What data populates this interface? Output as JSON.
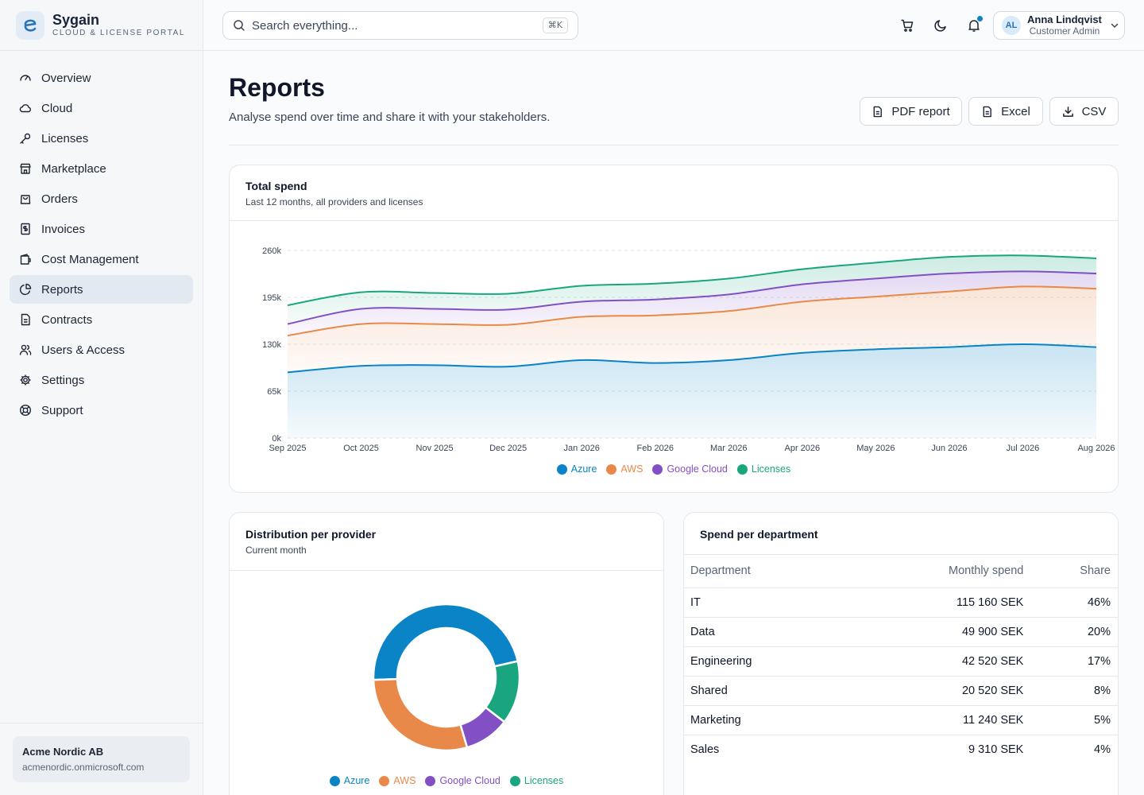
{
  "brand": {
    "name": "Sygain",
    "subtitle": "CLOUD & LICENSE PORTAL"
  },
  "sidebar": {
    "items": [
      {
        "label": "Overview",
        "icon": "gauge-icon"
      },
      {
        "label": "Cloud",
        "icon": "cloud-icon"
      },
      {
        "label": "Licenses",
        "icon": "key-icon"
      },
      {
        "label": "Marketplace",
        "icon": "store-icon"
      },
      {
        "label": "Orders",
        "icon": "shopping-bag-icon"
      },
      {
        "label": "Invoices",
        "icon": "receipt-icon"
      },
      {
        "label": "Cost Management",
        "icon": "wallet-icon"
      },
      {
        "label": "Reports",
        "icon": "pie-chart-icon",
        "active": true
      },
      {
        "label": "Contracts",
        "icon": "document-icon"
      },
      {
        "label": "Users & Access",
        "icon": "users-icon"
      },
      {
        "label": "Settings",
        "icon": "gear-icon"
      },
      {
        "label": "Support",
        "icon": "lifebuoy-icon"
      }
    ],
    "org": {
      "name": "Acme Nordic AB",
      "domain": "acmenordic.onmicrosoft.com"
    }
  },
  "topbar": {
    "search_placeholder": "Search everything...",
    "shortcut": "⌘K",
    "user": {
      "initials": "AL",
      "name": "Anna Lindqvist",
      "role": "Customer Admin"
    }
  },
  "page": {
    "title": "Reports",
    "subtitle": "Analyse spend over time and share it with your stakeholders.",
    "actions": {
      "pdf": "PDF report",
      "excel": "Excel",
      "csv": "CSV"
    }
  },
  "colors": {
    "azure": "#0a84c6",
    "aws": "#e8894a",
    "gcp": "#8250c4",
    "licenses": "#19a67e"
  },
  "total_spend": {
    "title": "Total spend",
    "subtitle": "Last 12 months, all providers and licenses"
  },
  "distribution": {
    "title": "Distribution per provider",
    "subtitle": "Current month"
  },
  "department": {
    "title": "Spend per department",
    "headers": {
      "department": "Department",
      "monthly": "Monthly spend",
      "share": "Share"
    },
    "rows": [
      {
        "department": "IT",
        "monthly": "115 160 SEK",
        "share": "46%"
      },
      {
        "department": "Data",
        "monthly": "49 900 SEK",
        "share": "20%"
      },
      {
        "department": "Engineering",
        "monthly": "42 520 SEK",
        "share": "17%"
      },
      {
        "department": "Shared",
        "monthly": "20 520 SEK",
        "share": "8%"
      },
      {
        "department": "Marketing",
        "monthly": "11 240 SEK",
        "share": "5%"
      },
      {
        "department": "Sales",
        "monthly": "9 310 SEK",
        "share": "4%"
      }
    ]
  },
  "chart_data": [
    {
      "type": "area",
      "stacked": true,
      "categories": [
        "Sep 2025",
        "Oct 2025",
        "Nov 2025",
        "Dec 2025",
        "Jan 2026",
        "Feb 2026",
        "Mar 2026",
        "Apr 2026",
        "May 2026",
        "Jun 2026",
        "Jul 2026",
        "Aug 2026"
      ],
      "y_ticks": [
        "0k",
        "65k",
        "130k",
        "195k",
        "260k"
      ],
      "ylim": [
        0,
        260000
      ],
      "grid": true,
      "legend_position": "bottom",
      "series": [
        {
          "name": "Azure",
          "values": [
            91000,
            100000,
            101000,
            99000,
            108000,
            104000,
            108000,
            118000,
            123000,
            126000,
            130000,
            126000
          ]
        },
        {
          "name": "AWS",
          "values": [
            51000,
            58000,
            57000,
            58000,
            60000,
            66000,
            68000,
            71000,
            73000,
            77000,
            80000,
            81000
          ]
        },
        {
          "name": "Google Cloud",
          "values": [
            16000,
            21000,
            21000,
            21000,
            21000,
            22000,
            23000,
            24000,
            25000,
            25000,
            21000,
            21000
          ]
        },
        {
          "name": "Licenses",
          "values": [
            26000,
            23000,
            22000,
            22000,
            22000,
            22000,
            22000,
            21000,
            22000,
            23000,
            22000,
            21000
          ]
        }
      ]
    },
    {
      "type": "pie",
      "donut": true,
      "legend_position": "bottom",
      "categories": [
        "Azure",
        "AWS",
        "Google Cloud",
        "Licenses"
      ],
      "values": [
        47,
        29,
        10,
        14
      ]
    }
  ]
}
